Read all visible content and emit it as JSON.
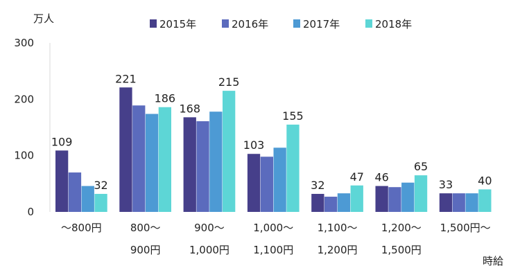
{
  "chart_data": {
    "type": "bar",
    "ylabel": "万人",
    "xlabel": "時給",
    "ylim": [
      0,
      300
    ],
    "yticks": [
      "0",
      "100",
      "200",
      "300"
    ],
    "grid": false,
    "legend_position": "top-center",
    "categories": [
      [
        "～800円"
      ],
      [
        "800～",
        "900円"
      ],
      [
        "900～",
        "1,000円"
      ],
      [
        "1,000～",
        "1,100円"
      ],
      [
        "1,100～",
        "1,200円"
      ],
      [
        "1,200～",
        "1,500円"
      ],
      [
        "1,500円～"
      ]
    ],
    "series": [
      {
        "name": "2015年",
        "color": "#463f8a",
        "values": [
          109,
          221,
          168,
          103,
          32,
          46,
          33
        ]
      },
      {
        "name": "2016年",
        "color": "#5b6bbd",
        "values": [
          70,
          189,
          161,
          98,
          27,
          44,
          33
        ]
      },
      {
        "name": "2017年",
        "color": "#4d9ad4",
        "values": [
          46,
          174,
          178,
          114,
          33,
          52,
          33
        ]
      },
      {
        "name": "2018年",
        "color": "#5dd6d6",
        "values": [
          32,
          186,
          215,
          155,
          47,
          65,
          40
        ]
      }
    ],
    "data_labels": [
      {
        "category": 0,
        "series": 0,
        "text": "109"
      },
      {
        "category": 0,
        "series": 3,
        "text": "32"
      },
      {
        "category": 1,
        "series": 0,
        "text": "221"
      },
      {
        "category": 1,
        "series": 3,
        "text": "186"
      },
      {
        "category": 2,
        "series": 0,
        "text": "168"
      },
      {
        "category": 2,
        "series": 3,
        "text": "215"
      },
      {
        "category": 3,
        "series": 0,
        "text": "103"
      },
      {
        "category": 3,
        "series": 3,
        "text": "155"
      },
      {
        "category": 4,
        "series": 0,
        "text": "32"
      },
      {
        "category": 4,
        "series": 3,
        "text": "47"
      },
      {
        "category": 5,
        "series": 0,
        "text": "46"
      },
      {
        "category": 5,
        "series": 3,
        "text": "65"
      },
      {
        "category": 6,
        "series": 0,
        "text": "33"
      },
      {
        "category": 6,
        "series": 3,
        "text": "40"
      }
    ]
  }
}
